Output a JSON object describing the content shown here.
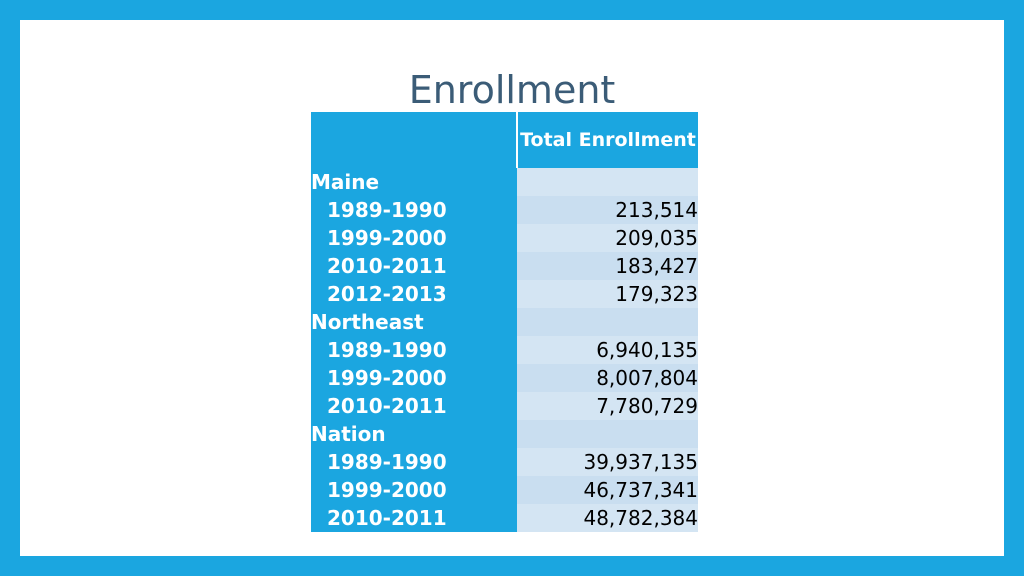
{
  "title": "Enrollment",
  "table": {
    "header": {
      "label": "",
      "total": "Total Enrollment"
    },
    "rows": [
      {
        "label": "Maine",
        "value": "",
        "group": true
      },
      {
        "label": "1989-1990",
        "value": "213,514",
        "group": false
      },
      {
        "label": "1999-2000",
        "value": "209,035",
        "group": false
      },
      {
        "label": "2010-2011",
        "value": "183,427",
        "group": false
      },
      {
        "label": "2012-2013",
        "value": "179,323",
        "group": false
      },
      {
        "label": "Northeast",
        "value": "",
        "group": true
      },
      {
        "label": "1989-1990",
        "value": "6,940,135",
        "group": false
      },
      {
        "label": "1999-2000",
        "value": "8,007,804",
        "group": false
      },
      {
        "label": "2010-2011",
        "value": "7,780,729",
        "group": false
      },
      {
        "label": "Nation",
        "value": "",
        "group": true
      },
      {
        "label": "1989-1990",
        "value": "39,937,135",
        "group": false
      },
      {
        "label": "1999-2000",
        "value": "46,737,341",
        "group": false
      },
      {
        "label": "2010-2011",
        "value": "48,782,384",
        "group": false
      }
    ]
  },
  "colors": {
    "frame": "#1ba6e0",
    "title": "#3b5c77",
    "header": "#1ba6e0",
    "cell": "#cde2f2"
  }
}
